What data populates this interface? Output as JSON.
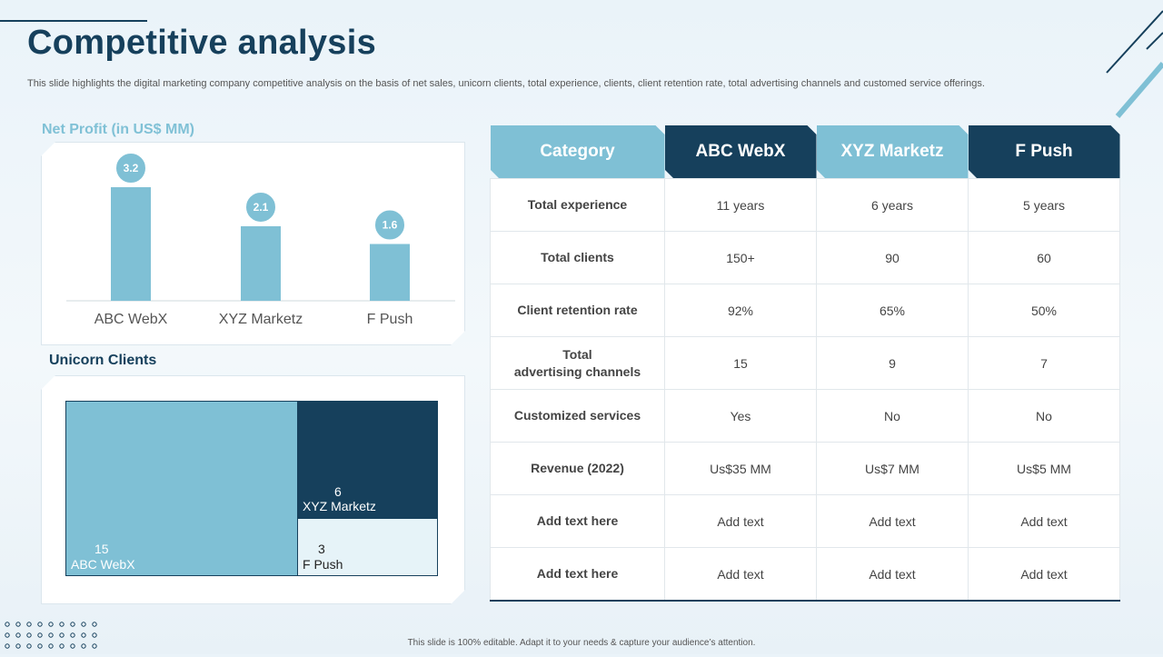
{
  "slide": {
    "title": "Competitive analysis",
    "subtitle": "This slide highlights the digital marketing company competitive analysis on the basis of net sales, unicorn clients, total experience, clients, client retention rate, total advertising channels and customed service offerings.",
    "footer": "This slide is 100% editable.  Adapt it to your needs & capture your audience’s attention."
  },
  "net_profit": {
    "title": "Net Profit (in US$ MM)"
  },
  "unicorn": {
    "title": "Unicorn Clients",
    "cells": [
      {
        "name": "ABC WebX",
        "value": "15",
        "color": "#7fc0d5"
      },
      {
        "name": "XYZ Marketz",
        "value": "6",
        "color": "#16405c"
      },
      {
        "name": "F Push",
        "value": "3",
        "color": "#e6f3f8"
      }
    ]
  },
  "chart_data": [
    {
      "type": "bar",
      "title": "Net Profit (in US$ MM)",
      "categories": [
        "ABC WebX",
        "XYZ Marketz",
        "F Push"
      ],
      "values": [
        3.2,
        2.1,
        1.6
      ],
      "data_labels": [
        "3.2",
        "2.1",
        "1.6"
      ],
      "ylim": [
        0,
        3.2
      ],
      "grid": false,
      "color": "#7fc0d5"
    },
    {
      "type": "treemap",
      "title": "Unicorn Clients",
      "categories": [
        "ABC WebX",
        "XYZ Marketz",
        "F Push"
      ],
      "values": [
        15,
        6,
        3
      ]
    }
  ],
  "table": {
    "headers": [
      "Category",
      "ABC WebX",
      "XYZ Marketz",
      "F Push"
    ],
    "rows": [
      {
        "cat": "Total experience",
        "vals": [
          "11 years",
          "6 years",
          "5 years"
        ]
      },
      {
        "cat": "Total clients",
        "vals": [
          "150+",
          "90",
          "60"
        ]
      },
      {
        "cat": "Client retention rate",
        "vals": [
          "92%",
          "65%",
          "50%"
        ]
      },
      {
        "cat": "Total advertising channels",
        "cat_lines": [
          "Total",
          "advertising channels"
        ],
        "vals": [
          "15",
          "9",
          "7"
        ]
      },
      {
        "cat": "Customized services",
        "vals": [
          "Yes",
          "No",
          "No"
        ]
      },
      {
        "cat": "Revenue (2022)",
        "vals": [
          "Us$35 MM",
          "Us$7 MM",
          "Us$5 MM"
        ]
      },
      {
        "cat": "Add text here",
        "vals": [
          "Add text",
          "Add text",
          "Add text"
        ]
      },
      {
        "cat": "Add text here",
        "vals": [
          "Add text",
          "Add text",
          "Add text"
        ]
      }
    ]
  },
  "colors": {
    "dark": "#16405c",
    "light": "#7fc0d5",
    "pale": "#e6f3f8"
  }
}
